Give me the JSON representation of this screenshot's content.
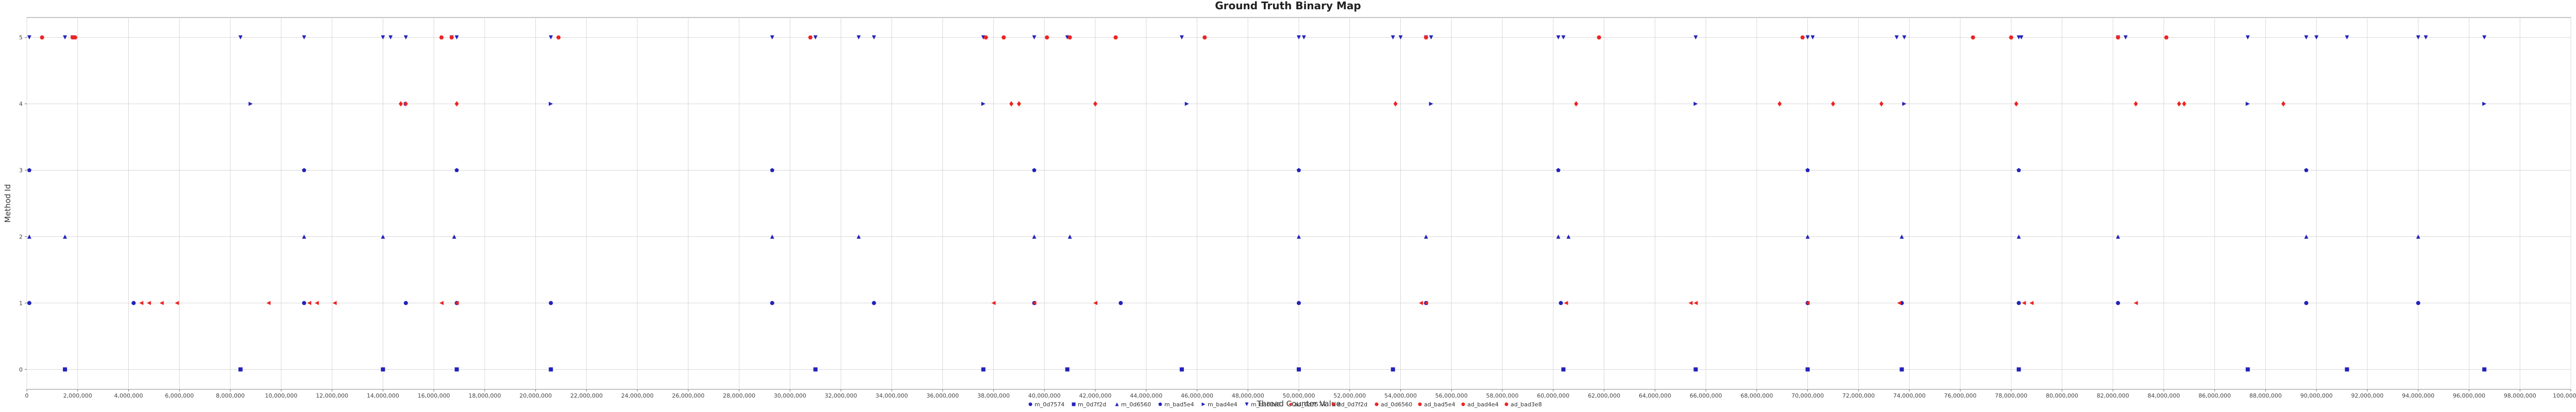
{
  "chart_data": {
    "type": "scatter",
    "title": "Ground Truth Binary Map",
    "xlabel": "Thread Counter Value",
    "ylabel": "Method Id",
    "xlim": [
      0,
      100000000
    ],
    "ylim": [
      -0.3,
      5.3
    ],
    "x_ticks": [
      0,
      2000000,
      4000000,
      6000000,
      8000000,
      10000000,
      12000000,
      14000000,
      16000000,
      18000000,
      20000000,
      22000000,
      24000000,
      26000000,
      28000000,
      30000000,
      32000000,
      34000000,
      36000000,
      38000000,
      40000000,
      42000000,
      44000000,
      46000000,
      48000000,
      50000000,
      52000000,
      54000000,
      56000000,
      58000000,
      60000000,
      62000000,
      64000000,
      66000000,
      68000000,
      70000000,
      72000000,
      74000000,
      76000000,
      78000000,
      80000000,
      82000000,
      84000000,
      86000000,
      88000000,
      90000000,
      92000000,
      94000000,
      96000000,
      98000000,
      100000000
    ],
    "x_tick_labels": [
      "0",
      "2,000,000",
      "4,000,000",
      "6,000,000",
      "8,000,000",
      "10,000,000",
      "12,000,000",
      "14,000,000",
      "16,000,000",
      "18,000,000",
      "20,000,000",
      "22,000,000",
      "24,000,000",
      "26,000,000",
      "28,000,000",
      "30,000,000",
      "32,000,000",
      "34,000,000",
      "36,000,000",
      "38,000,000",
      "40,000,000",
      "42,000,000",
      "44,000,000",
      "46,000,000",
      "48,000,000",
      "50,000,000",
      "52,000,000",
      "54,000,000",
      "56,000,000",
      "58,000,000",
      "60,000,000",
      "62,000,000",
      "64,000,000",
      "66,000,000",
      "68,000,000",
      "70,000,000",
      "72,000,000",
      "74,000,000",
      "76,000,000",
      "78,000,000",
      "80,000,000",
      "82,000,000",
      "84,000,000",
      "86,000,000",
      "88,000,000",
      "90,000,000",
      "92,000,000",
      "94,000,000",
      "96,000,000",
      "98,000,000",
      "100,000,000"
    ],
    "y_ticks": [
      0,
      1,
      2,
      3,
      4,
      5
    ],
    "y_tick_labels": [
      "0",
      "1",
      "2",
      "3",
      "4",
      "5"
    ],
    "grid": true,
    "legend_position": "bottom-center",
    "series": [
      {
        "name": "m_0d7574",
        "color": "#2222bb",
        "marker": "circle",
        "x": [
          100000,
          4200000,
          10900000,
          14900000,
          16900000,
          20600000,
          29300000,
          33300000,
          39600000,
          43000000,
          50000000,
          55000000,
          60300000,
          70000000,
          73700000,
          78300000,
          82200000,
          89600000,
          94000000
        ],
        "y": [
          1,
          1,
          1,
          1,
          1,
          1,
          1,
          1,
          1,
          1,
          1,
          1,
          1,
          1,
          1,
          1,
          1,
          1,
          1
        ]
      },
      {
        "name": "m_0d7f2d",
        "color": "#2222bb",
        "marker": "square",
        "x": [
          1500000,
          8400000,
          14000000,
          16900000,
          20600000,
          31000000,
          37600000,
          40900000,
          45400000,
          50000000,
          53700000,
          60400000,
          65600000,
          70000000,
          73700000,
          78300000,
          87300000,
          91200000,
          96600000
        ],
        "y": [
          0,
          0,
          0,
          0,
          0,
          0,
          0,
          0,
          0,
          0,
          0,
          0,
          0,
          0,
          0,
          0,
          0,
          0,
          0
        ]
      },
      {
        "name": "m_0d6560",
        "color": "#2222bb",
        "marker": "triangle-up",
        "x": [
          100000,
          1500000,
          10900000,
          14000000,
          16800000,
          29300000,
          32700000,
          39600000,
          41000000,
          50000000,
          55000000,
          60200000,
          60600000,
          70000000,
          73700000,
          78300000,
          82200000,
          89600000,
          94000000
        ],
        "y": [
          2,
          2,
          2,
          2,
          2,
          2,
          2,
          2,
          2,
          2,
          2,
          2,
          2,
          2,
          2,
          2,
          2,
          2,
          2
        ]
      },
      {
        "name": "m_bad5e4",
        "color": "#2222bb",
        "marker": "pentagon",
        "x": [
          100000,
          10900000,
          16900000,
          29300000,
          39600000,
          50000000,
          60200000,
          70000000,
          78300000,
          89600000
        ],
        "y": [
          3,
          3,
          3,
          3,
          3,
          3,
          3,
          3,
          3,
          3
        ]
      },
      {
        "name": "m_bad4e4",
        "color": "#2222bb",
        "marker": "triangle-right",
        "x": [
          8800000,
          14900000,
          20600000,
          37600000,
          45600000,
          55200000,
          65600000,
          73800000,
          87300000,
          96600000
        ],
        "y": [
          4,
          4,
          4,
          4,
          4,
          4,
          4,
          4,
          4,
          4
        ]
      },
      {
        "name": "m_bad3e8",
        "color": "#2222bb",
        "marker": "triangle-down",
        "x": [
          100000,
          1500000,
          1800000,
          8400000,
          10900000,
          14000000,
          14300000,
          14900000,
          16700000,
          16900000,
          20600000,
          29300000,
          31000000,
          32700000,
          33300000,
          37600000,
          39600000,
          40900000,
          45400000,
          50000000,
          50200000,
          53700000,
          54000000,
          55000000,
          55200000,
          60200000,
          60400000,
          65600000,
          70000000,
          70200000,
          73500000,
          73800000,
          78300000,
          78400000,
          82200000,
          82500000,
          87300000,
          89600000,
          90000000,
          91200000,
          94000000,
          94300000,
          96600000
        ],
        "y": [
          5,
          5,
          5,
          5,
          5,
          5,
          5,
          5,
          5,
          5,
          5,
          5,
          5,
          5,
          5,
          5,
          5,
          5,
          5,
          5,
          5,
          5,
          5,
          5,
          5,
          5,
          5,
          5,
          5,
          5,
          5,
          5,
          5,
          5,
          5,
          5,
          5,
          5,
          5,
          5,
          5,
          5,
          5
        ]
      },
      {
        "name": "ad_0d7574",
        "color": "#ee2222",
        "marker": "triangle-left",
        "x": [
          4500000,
          4800000,
          5300000,
          5900000,
          9500000,
          11100000,
          11400000,
          12100000,
          16300000,
          16900000,
          38000000,
          39600000,
          42000000,
          54800000,
          55000000,
          60500000,
          65400000,
          65600000,
          70000000,
          73600000,
          78500000,
          78800000,
          82900000
        ],
        "y": [
          1,
          1,
          1,
          1,
          1,
          1,
          1,
          1,
          1,
          1,
          1,
          1,
          1,
          1,
          1,
          1,
          1,
          1,
          1,
          1,
          1,
          1,
          1
        ]
      },
      {
        "name": "ad_0d7f2d",
        "color": "#ee2222",
        "marker": "diamond",
        "x": [
          14700000,
          14900000,
          16900000,
          38700000,
          39000000,
          42000000,
          53800000,
          60900000,
          68900000,
          71000000,
          72900000,
          78200000,
          82900000,
          84600000,
          84800000,
          88700000
        ],
        "y": [
          4,
          4,
          4,
          4,
          4,
          4,
          4,
          4,
          4,
          4,
          4,
          4,
          4,
          4,
          4,
          4
        ]
      },
      {
        "name": "ad_0d6560",
        "color": "#ee2222",
        "marker": "hexagon",
        "x": [
          600000,
          1800000,
          1900000,
          16300000,
          16700000,
          20900000,
          30800000,
          37700000,
          38400000,
          40100000,
          41000000,
          42800000,
          46300000,
          55000000,
          61800000,
          69800000,
          76500000,
          78000000,
          82200000,
          84100000
        ],
        "y": [
          5,
          5,
          5,
          5,
          5,
          5,
          5,
          5,
          5,
          5,
          5,
          5,
          5,
          5,
          5,
          5,
          5,
          5,
          5,
          5
        ]
      },
      {
        "name": "ad_bad5e4",
        "color": "#ee2222",
        "marker": "circle",
        "x": [],
        "y": []
      },
      {
        "name": "ad_bad4e4",
        "color": "#ee2222",
        "marker": "circle",
        "x": [],
        "y": []
      },
      {
        "name": "ad_bad3e8",
        "color": "#ee2222",
        "marker": "circle",
        "x": [],
        "y": []
      }
    ]
  }
}
